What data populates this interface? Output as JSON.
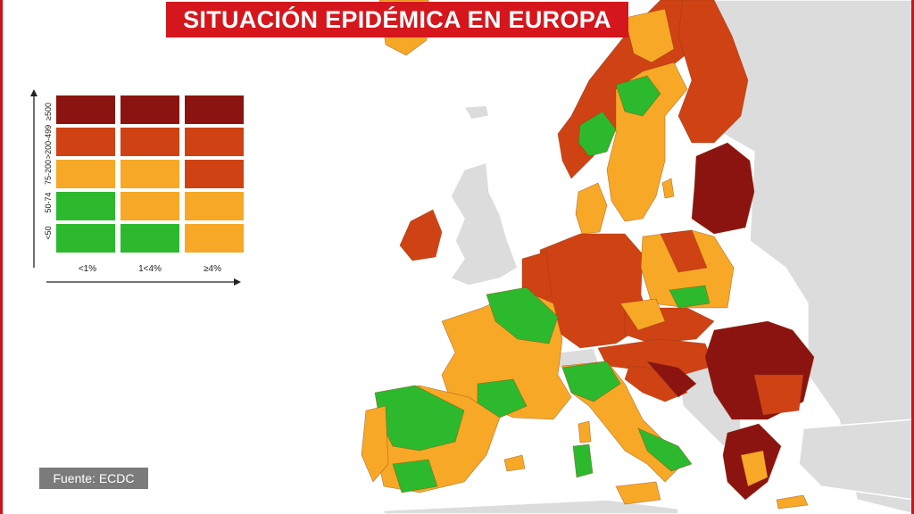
{
  "title": "SITUACIÓN EPIDÉMICA EN EUROPA",
  "source": "Fuente: ECDC",
  "colors": {
    "dark_red": "#8c1410",
    "red": "#cf4214",
    "orange": "#f7a826",
    "green": "#2db92d",
    "grey": "#dcdcdc",
    "sea": "#ffffff",
    "title_bg": "#d5161c"
  },
  "legend": {
    "row_labels": [
      "≥500",
      ">200-499",
      "75-200",
      "50-74",
      "<50"
    ],
    "col_labels": [
      "<1%",
      "1<4%",
      "≥4%"
    ],
    "grid": [
      [
        "dark_red",
        "dark_red",
        "dark_red"
      ],
      [
        "red",
        "red",
        "red"
      ],
      [
        "orange",
        "orange",
        "red"
      ],
      [
        "green",
        "orange",
        "orange"
      ],
      [
        "green",
        "green",
        "orange"
      ]
    ]
  }
}
